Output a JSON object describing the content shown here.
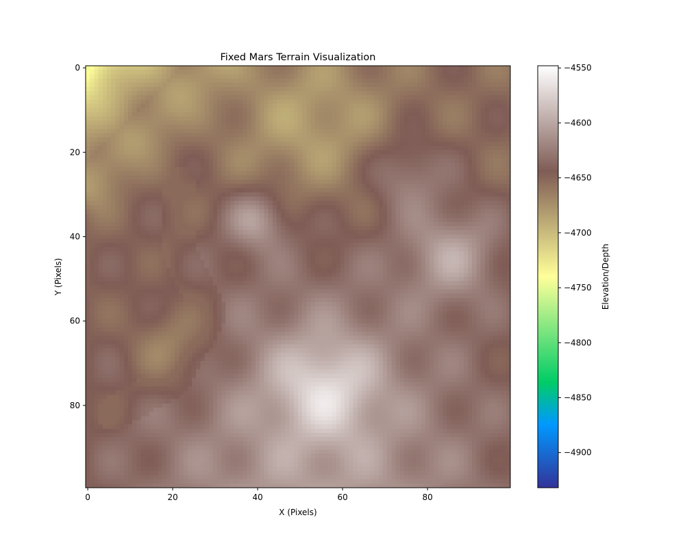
{
  "chart_data": {
    "type": "heatmap",
    "title": "Fixed Mars Terrain Visualization",
    "xlabel": "X (Pixels)",
    "ylabel": "Y (Pixels)",
    "colorbar_label": "Elevation/Depth",
    "colormap": "terrain",
    "xlim": [
      0,
      99
    ],
    "ylim": [
      99,
      0
    ],
    "x_ticks": [
      0,
      20,
      40,
      60,
      80
    ],
    "y_ticks": [
      0,
      20,
      40,
      60,
      80
    ],
    "colorbar_range": [
      -4932,
      -4548
    ],
    "colorbar_ticks": [
      -4550,
      -4600,
      -4650,
      -4700,
      -4750,
      -4800,
      -4850,
      -4900
    ],
    "grid_size": [
      100,
      100
    ],
    "features": [
      {
        "type": "valley",
        "path": [
          [
            0,
            28
          ],
          [
            12,
            16
          ],
          [
            22,
            5
          ],
          [
            30,
            -3
          ]
        ],
        "depth": -4760,
        "width": 4
      },
      {
        "type": "ridge",
        "path": [
          [
            21,
            27
          ],
          [
            22,
            45
          ],
          [
            29,
            58
          ],
          [
            20,
            74
          ],
          [
            6,
            82
          ]
        ],
        "height": -4652
      },
      {
        "type": "peak",
        "at": [
          56,
          76
        ],
        "height": -4552
      },
      {
        "type": "peak",
        "at": [
          40,
          36
        ],
        "height": -4612
      },
      {
        "type": "peak",
        "at": [
          86,
          44
        ],
        "height": -4615
      }
    ]
  },
  "colors": {
    "terrain_stops": [
      [
        0.0,
        "#333399"
      ],
      [
        0.15,
        "#0099ff"
      ],
      [
        0.25,
        "#00cc66"
      ],
      [
        0.5,
        "#ffff99"
      ],
      [
        0.75,
        "#7f5c55"
      ],
      [
        1.0,
        "#ffffff"
      ]
    ]
  }
}
